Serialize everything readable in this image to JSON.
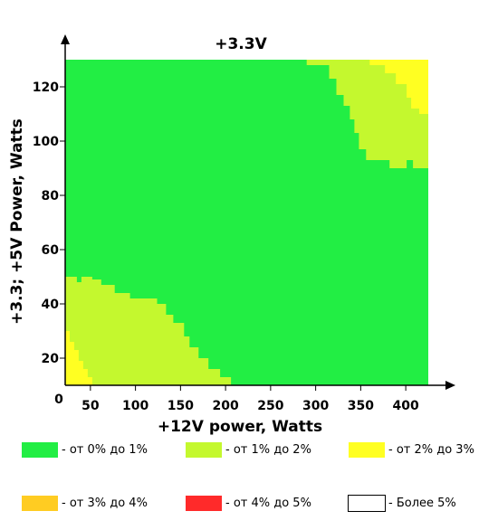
{
  "chart_data": {
    "type": "heatmap",
    "title": "+3.3V",
    "xlabel": "+12V power, Watts",
    "ylabel": "+3.3; +5V Power, Watts",
    "xlim": [
      22,
      425
    ],
    "ylim": [
      10,
      130
    ],
    "x_ticks": [
      50,
      100,
      150,
      200,
      250,
      300,
      350,
      400
    ],
    "y_ticks": [
      20,
      40,
      60,
      80,
      100,
      120
    ],
    "origin_label": "0",
    "background_level": 0,
    "regions": [
      {
        "level": 1,
        "polygon": [
          [
            22,
            10
          ],
          [
            22,
            50
          ],
          [
            35,
            50
          ],
          [
            35,
            48
          ],
          [
            40,
            48
          ],
          [
            40,
            50
          ],
          [
            52,
            50
          ],
          [
            52,
            49
          ],
          [
            62,
            49
          ],
          [
            62,
            47
          ],
          [
            77,
            47
          ],
          [
            77,
            44
          ],
          [
            94,
            44
          ],
          [
            94,
            42
          ],
          [
            124,
            42
          ],
          [
            124,
            40
          ],
          [
            134,
            40
          ],
          [
            134,
            36
          ],
          [
            142,
            36
          ],
          [
            142,
            33
          ],
          [
            154,
            33
          ],
          [
            154,
            28
          ],
          [
            160,
            28
          ],
          [
            160,
            24
          ],
          [
            170,
            24
          ],
          [
            170,
            20
          ],
          [
            181,
            20
          ],
          [
            181,
            16
          ],
          [
            194,
            16
          ],
          [
            194,
            13
          ],
          [
            206,
            13
          ],
          [
            206,
            10
          ]
        ]
      },
      {
        "level": 2,
        "polygon": [
          [
            22,
            10
          ],
          [
            22,
            30
          ],
          [
            27,
            30
          ],
          [
            27,
            26
          ],
          [
            32,
            26
          ],
          [
            32,
            23
          ],
          [
            37,
            23
          ],
          [
            37,
            19
          ],
          [
            42,
            19
          ],
          [
            42,
            16
          ],
          [
            47,
            16
          ],
          [
            47,
            13
          ],
          [
            52,
            13
          ],
          [
            52,
            10
          ]
        ]
      },
      {
        "level": 1,
        "polygon": [
          [
            285,
            130
          ],
          [
            425,
            130
          ],
          [
            425,
            90
          ],
          [
            408,
            90
          ],
          [
            408,
            93
          ],
          [
            401,
            93
          ],
          [
            401,
            90
          ],
          [
            382,
            90
          ],
          [
            382,
            93
          ],
          [
            356,
            93
          ],
          [
            356,
            97
          ],
          [
            348,
            97
          ],
          [
            348,
            103
          ],
          [
            343,
            103
          ],
          [
            343,
            108
          ],
          [
            338,
            108
          ],
          [
            338,
            113
          ],
          [
            331,
            113
          ],
          [
            331,
            117
          ],
          [
            323,
            117
          ],
          [
            323,
            123
          ],
          [
            315,
            123
          ],
          [
            315,
            128
          ],
          [
            290,
            128
          ],
          [
            290,
            130
          ]
        ]
      },
      {
        "level": 2,
        "polygon": [
          [
            325,
            130
          ],
          [
            425,
            130
          ],
          [
            425,
            110
          ],
          [
            415,
            110
          ],
          [
            415,
            112
          ],
          [
            406,
            112
          ],
          [
            406,
            116
          ],
          [
            401,
            116
          ],
          [
            401,
            121
          ],
          [
            389,
            121
          ],
          [
            389,
            125
          ],
          [
            377,
            125
          ],
          [
            377,
            128
          ],
          [
            360,
            128
          ],
          [
            360,
            130
          ]
        ]
      }
    ],
    "legend": [
      {
        "label": "- от 0% до 1%",
        "color": "#22ee44"
      },
      {
        "label": "- от 1% до 2%",
        "color": "#c4f82e"
      },
      {
        "label": "- от 2% до 3%",
        "color": "#ffff22"
      },
      {
        "label": "- от 3% до 4%",
        "color": "#ffcc22"
      },
      {
        "label": "- от 4% до 5%",
        "color": "#ff2a2a"
      },
      {
        "label": "- Более 5%",
        "color": "#ffffff"
      }
    ]
  }
}
